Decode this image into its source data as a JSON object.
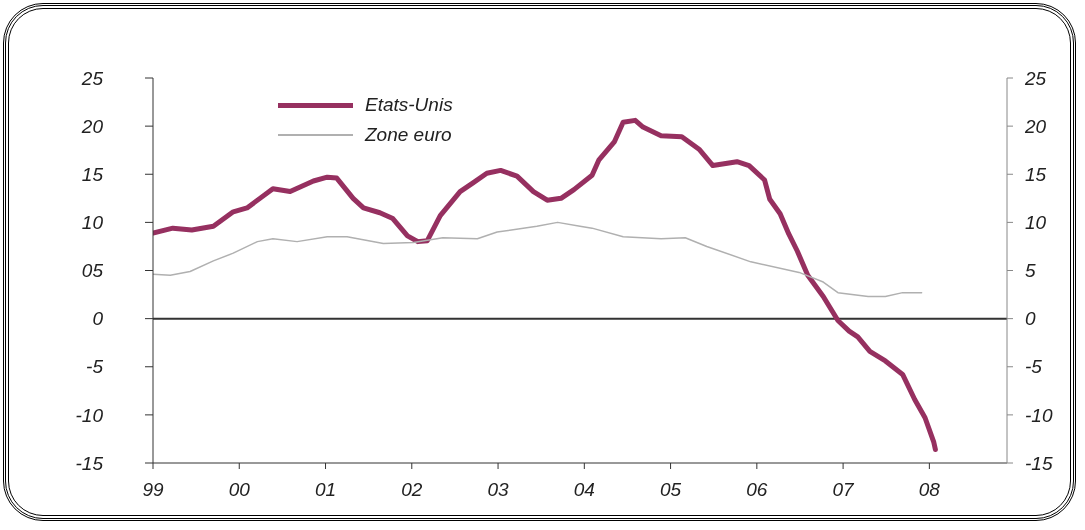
{
  "chart_data": {
    "type": "line",
    "marker": "none",
    "legend": "top left",
    "xlim": [
      1999,
      2008.9
    ],
    "xticks": [
      {
        "value": 1999,
        "label": "99"
      },
      {
        "value": 2000,
        "label": "00"
      },
      {
        "value": 2001,
        "label": "01"
      },
      {
        "value": 2002,
        "label": "02"
      },
      {
        "value": 2003,
        "label": "03"
      },
      {
        "value": 2004,
        "label": "04"
      },
      {
        "value": 2005,
        "label": "05"
      },
      {
        "value": 2006,
        "label": "06"
      },
      {
        "value": 2007,
        "label": "07"
      },
      {
        "value": 2008,
        "label": "08"
      }
    ],
    "ylim": [
      -15,
      25
    ],
    "yticks": [
      -15,
      -10,
      -5,
      0,
      {
        "value": 5,
        "label": "05"
      },
      10,
      15,
      20,
      25
    ],
    "y2lim": [
      -15,
      25
    ],
    "y2ticks": [
      -15,
      -10,
      -5,
      0,
      5,
      10,
      15,
      20,
      25
    ],
    "ref_lines": [
      {
        "axis": "y",
        "value": 0,
        "color": "#333333"
      }
    ],
    "series": [
      {
        "name": "Etats-Unis",
        "color": "#963060",
        "x": [
          1999.0,
          1999.23,
          1999.45,
          1999.7,
          1999.93,
          2000.09,
          2000.39,
          2000.59,
          2000.86,
          2001.02,
          2001.13,
          2001.32,
          2001.44,
          2001.63,
          2001.78,
          2001.95,
          2002.07,
          2002.18,
          2002.33,
          2002.56,
          2002.71,
          2002.87,
          2003.03,
          2003.22,
          2003.41,
          2003.57,
          2003.73,
          2003.88,
          2004.09,
          2004.17,
          2004.35,
          2004.45,
          2004.59,
          2004.68,
          2004.89,
          2005.13,
          2005.33,
          2005.49,
          2005.77,
          2005.91,
          2006.09,
          2006.15,
          2006.27,
          2006.37,
          2006.47,
          2006.59,
          2006.77,
          2006.94,
          2007.07,
          2007.17,
          2007.31,
          2007.49,
          2007.69,
          2007.83,
          2007.95,
          2008.05,
          2008.07
        ],
        "values": [
          8.9,
          9.4,
          9.2,
          9.6,
          11.1,
          11.5,
          13.5,
          13.2,
          14.3,
          14.7,
          14.6,
          12.5,
          11.5,
          11.0,
          10.4,
          8.6,
          8.0,
          8.1,
          10.7,
          13.2,
          14.1,
          15.1,
          15.4,
          14.8,
          13.2,
          12.3,
          12.5,
          13.4,
          14.9,
          16.5,
          18.4,
          20.4,
          20.6,
          19.9,
          19.0,
          18.9,
          17.6,
          15.9,
          16.3,
          15.9,
          14.4,
          12.4,
          10.9,
          8.8,
          7.0,
          4.5,
          2.3,
          -0.2,
          -1.3,
          -1.9,
          -3.4,
          -4.4,
          -5.8,
          -8.4,
          -10.3,
          -12.8,
          -13.6
        ]
      },
      {
        "name": "Zone euro",
        "color": "#b0b0b0",
        "x": [
          1999.0,
          1999.2,
          1999.43,
          1999.7,
          1999.93,
          2000.21,
          2000.39,
          2000.67,
          2001.02,
          2001.25,
          2001.67,
          2002.02,
          2002.36,
          2002.76,
          2002.99,
          2003.45,
          2003.69,
          2003.95,
          2004.09,
          2004.45,
          2004.89,
          2005.17,
          2005.42,
          2005.93,
          2006.49,
          2006.77,
          2006.94,
          2007.29,
          2007.49,
          2007.69,
          2007.91
        ],
        "values": [
          4.6,
          4.5,
          4.9,
          6.0,
          6.8,
          8.0,
          8.3,
          8.0,
          8.5,
          8.5,
          7.8,
          7.9,
          8.4,
          8.3,
          9.0,
          9.6,
          10.0,
          9.6,
          9.4,
          8.5,
          8.3,
          8.4,
          7.5,
          5.9,
          4.8,
          3.8,
          2.7,
          2.3,
          2.3,
          2.7,
          2.7
        ]
      }
    ]
  }
}
